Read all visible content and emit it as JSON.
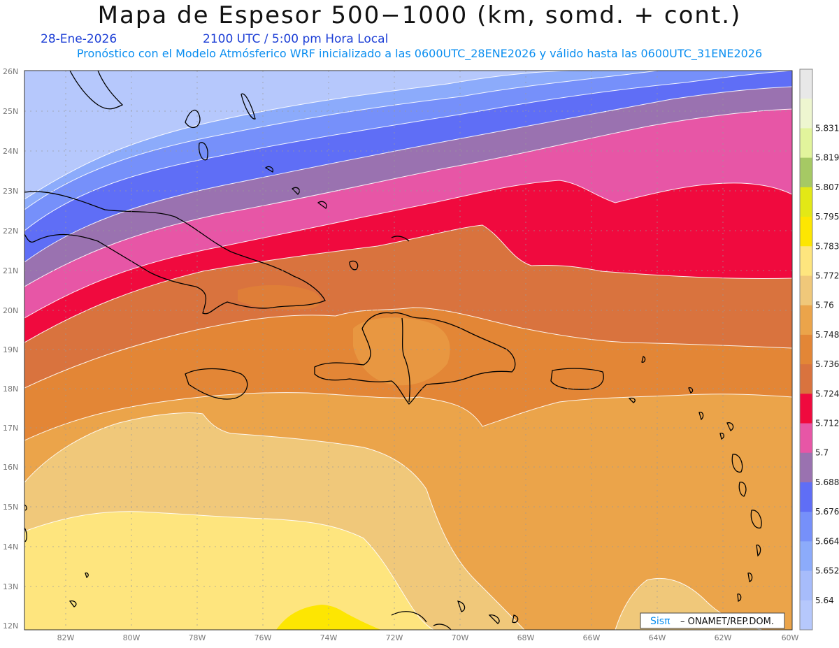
{
  "title": "Mapa de Espesor 500−1000 (km, somd. + cont.)",
  "date": "28-Ene-2026",
  "time": "2100 UTC / 5:00 pm Hora Local",
  "forecast": "Pronóstico con el Modelo Atmósferico WRF inicializado a las 0600UTC_28ENE2026 y válido hasta las  0600UTC_31ENE2026",
  "credit": {
    "logo": "Sisπ",
    "text": "– ONAMET/REP.DOM."
  },
  "axes": {
    "lat_labels": [
      "26N",
      "25N",
      "24N",
      "23N",
      "22N",
      "21N",
      "20N",
      "19N",
      "18N",
      "17N",
      "16N",
      "15N",
      "14N",
      "13N",
      "12N"
    ],
    "lon_labels": [
      "82W",
      "80W",
      "78W",
      "76W",
      "74W",
      "72W",
      "70W",
      "68W",
      "66W",
      "64W",
      "62W",
      "60W"
    ]
  },
  "colorbar": {
    "levels": [
      "5.64",
      "5.652",
      "5.664",
      "5.676",
      "5.688",
      "5.7",
      "5.712",
      "5.724",
      "5.736",
      "5.748",
      "5.76",
      "5.772",
      "5.783",
      "5.795",
      "5.807",
      "5.819",
      "5.831"
    ],
    "colors": [
      "#b6c8fc",
      "#a7bcfb",
      "#8cabfb",
      "#7690fa",
      "#5f6ef6",
      "#9a72b0",
      "#e756a6",
      "#f00a3e",
      "#d9733e",
      "#e38636",
      "#eba44a",
      "#f0c87a",
      "#fee57e",
      "#fde602",
      "#e3e816",
      "#a6c964",
      "#e2f49c",
      "#eef6d0",
      "#e8e8e8"
    ]
  }
}
